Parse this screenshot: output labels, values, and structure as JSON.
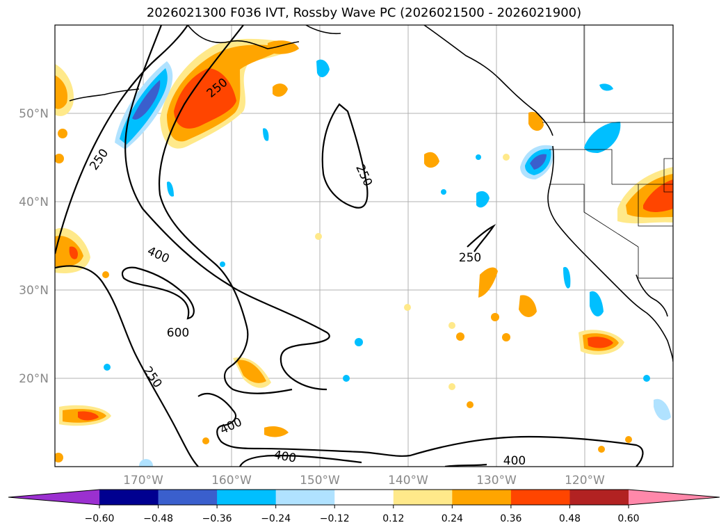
{
  "title": "2026021300 F036 IVT, Rossby Wave PC (2026021500 - 2026021900)",
  "map": {
    "lat_labels": [
      {
        "lat": 50,
        "text": "50°N"
      },
      {
        "lat": 40,
        "text": "40°N"
      },
      {
        "lat": 30,
        "text": "30°N"
      },
      {
        "lat": 20,
        "text": "20°N"
      }
    ],
    "lon_labels": [
      {
        "lon": -170,
        "text": "170°W"
      },
      {
        "lon": -160,
        "text": "160°W"
      },
      {
        "lon": -150,
        "text": "150°W"
      },
      {
        "lon": -140,
        "text": "140°W"
      },
      {
        "lon": -130,
        "text": "130°W"
      },
      {
        "lon": -120,
        "text": "120°W"
      }
    ],
    "contour_labels": [
      "250",
      "250",
      "250",
      "400",
      "600",
      "250",
      "400",
      "400",
      "400",
      "250"
    ]
  },
  "colorbar": {
    "ticks": [
      "−0.60",
      "−0.48",
      "−0.36",
      "−0.24",
      "−0.12",
      "0.12",
      "0.24",
      "0.36",
      "0.48",
      "0.60"
    ],
    "colors": [
      "#9b30d0",
      "#000090",
      "#3a5fcd",
      "#00bfff",
      "#b0e2ff",
      "#ffffff",
      "#ffe98a",
      "#ffa500",
      "#ff4500",
      "#b22222",
      "#ff88aa"
    ]
  }
}
